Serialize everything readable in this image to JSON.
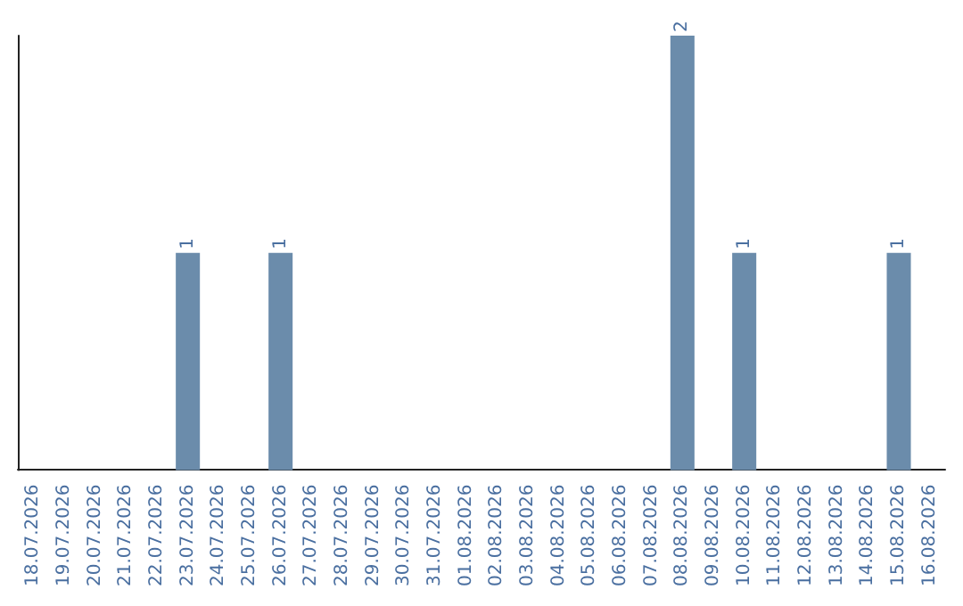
{
  "chart_data": {
    "type": "bar",
    "categories": [
      "18.07.2026",
      "19.07.2026",
      "20.07.2026",
      "21.07.2026",
      "22.07.2026",
      "23.07.2026",
      "24.07.2026",
      "25.07.2026",
      "26.07.2026",
      "27.07.2026",
      "28.07.2026",
      "29.07.2026",
      "30.07.2026",
      "31.07.2026",
      "01.08.2026",
      "02.08.2026",
      "03.08.2026",
      "04.08.2026",
      "05.08.2026",
      "06.08.2026",
      "07.08.2026",
      "08.08.2026",
      "09.08.2026",
      "10.08.2026",
      "11.08.2026",
      "12.08.2026",
      "13.08.2026",
      "14.08.2026",
      "15.08.2026",
      "16.08.2026"
    ],
    "values": [
      0,
      0,
      0,
      0,
      0,
      1,
      0,
      0,
      1,
      0,
      0,
      0,
      0,
      0,
      0,
      0,
      0,
      0,
      0,
      0,
      0,
      2,
      0,
      1,
      0,
      0,
      0,
      0,
      1,
      0
    ],
    "value_labels": [
      null,
      null,
      null,
      null,
      null,
      "1",
      null,
      null,
      "1",
      null,
      null,
      null,
      null,
      null,
      null,
      null,
      null,
      null,
      null,
      null,
      null,
      "2",
      null,
      "1",
      null,
      null,
      null,
      null,
      "1",
      null
    ],
    "color": "#6b8cab",
    "tick_labels": "x"
  }
}
